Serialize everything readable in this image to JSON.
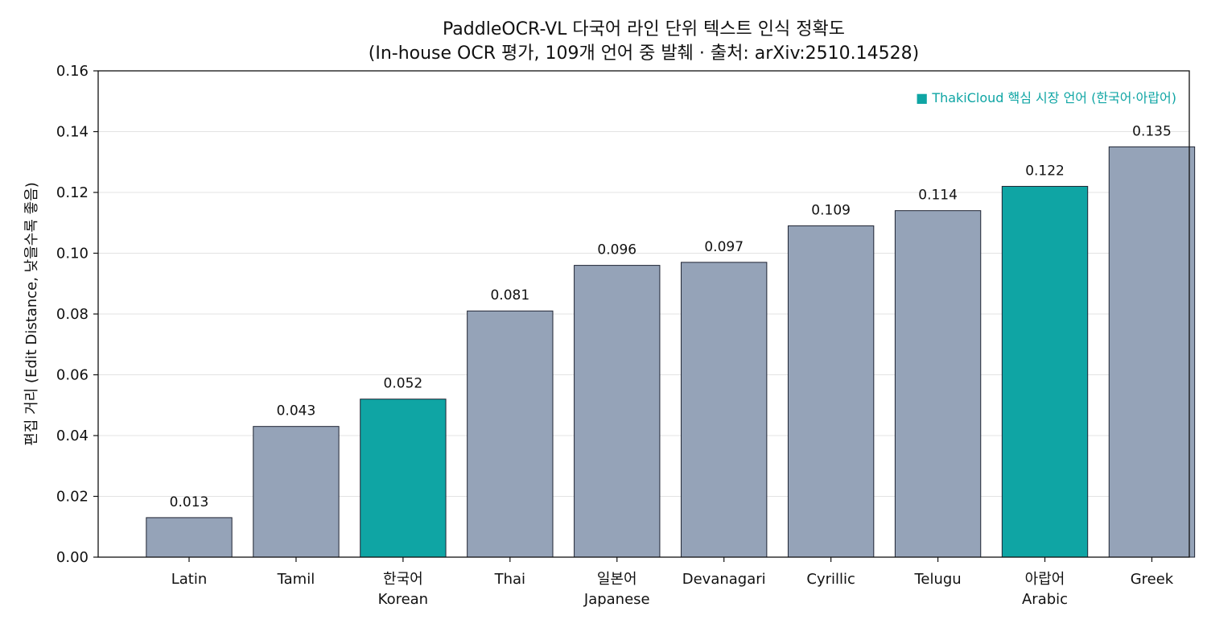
{
  "chart_data": {
    "type": "bar",
    "title": "PaddleOCR-VL 다국어 라인 단위 텍스트 인식 정확도",
    "subtitle": "(In-house OCR 평가, 109개 언어 중 발췌 · 출처: arXiv:2510.14528)",
    "ylabel": "편집 거리 (Edit Distance, 낮을수록 좋음)",
    "xlabel": "",
    "ylim": [
      0,
      0.16
    ],
    "yticks": [
      "0.00",
      "0.02",
      "0.04",
      "0.06",
      "0.08",
      "0.10",
      "0.12",
      "0.14",
      "0.16"
    ],
    "ytick_values": [
      0,
      0.02,
      0.04,
      0.06,
      0.08,
      0.1,
      0.12,
      0.14,
      0.16
    ],
    "grid": "horizontal",
    "legend_position": "top-right",
    "categories": [
      [
        "Latin"
      ],
      [
        "Tamil"
      ],
      [
        "한국어",
        "Korean"
      ],
      [
        "Thai"
      ],
      [
        "일본어",
        "Japanese"
      ],
      [
        "Devanagari"
      ],
      [
        "Cyrillic"
      ],
      [
        "Telugu"
      ],
      [
        "아랍어",
        "Arabic"
      ],
      [
        "Greek"
      ]
    ],
    "values": [
      0.013,
      0.043,
      0.052,
      0.081,
      0.096,
      0.097,
      0.109,
      0.114,
      0.122,
      0.135
    ],
    "value_labels": [
      "0.013",
      "0.043",
      "0.052",
      "0.081",
      "0.096",
      "0.097",
      "0.109",
      "0.114",
      "0.122",
      "0.135"
    ],
    "highlighted": [
      false,
      false,
      true,
      false,
      false,
      false,
      false,
      false,
      true,
      false
    ],
    "legend": "■ ThakiCloud 핵심 시장 언어 (한국어·아랍어)",
    "colors": {
      "default_bar": "#95a3b8",
      "highlight_bar": "#0fa5a4",
      "bar_edge": "#1f2433",
      "grid": "#e3e3e3",
      "axis": "#111111",
      "legend_text": "#0fa5a4"
    }
  }
}
